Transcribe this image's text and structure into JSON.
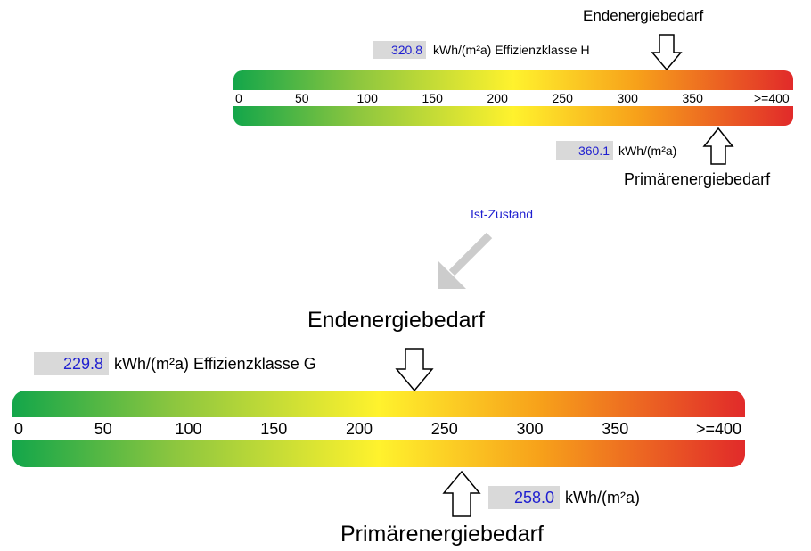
{
  "scale": {
    "max": 400,
    "ticks": [
      "0",
      "50",
      "100",
      "150",
      "200",
      "250",
      "300",
      "350",
      ">=400"
    ],
    "gradient_colors": [
      "#13a64a",
      "#8cc63f",
      "#fff22d",
      "#f7a11a",
      "#e12a2a"
    ]
  },
  "current": {
    "end_title": "Endenergiebedarf",
    "end_value": "320.8",
    "end_value_num": 320.8,
    "end_unit": "kWh/(m²a) Effizienzklasse H",
    "primary_title": "Primärenergiebedarf",
    "primary_value": "360.1",
    "primary_value_num": 360.1,
    "primary_unit": "kWh/(m²a)"
  },
  "transition": {
    "label": "Ist-Zustand",
    "label_color": "#1f1fd0",
    "arrow_color": "#cccccc"
  },
  "target": {
    "end_title": "Endenergiebedarf",
    "end_value": "229.8",
    "end_value_num": 229.8,
    "end_unit": "kWh/(m²a) Effizienzklasse G",
    "primary_title": "Primärenergiebedarf",
    "primary_value": "258.0",
    "primary_value_num": 258.0,
    "primary_unit": "kWh/(m²a)"
  }
}
